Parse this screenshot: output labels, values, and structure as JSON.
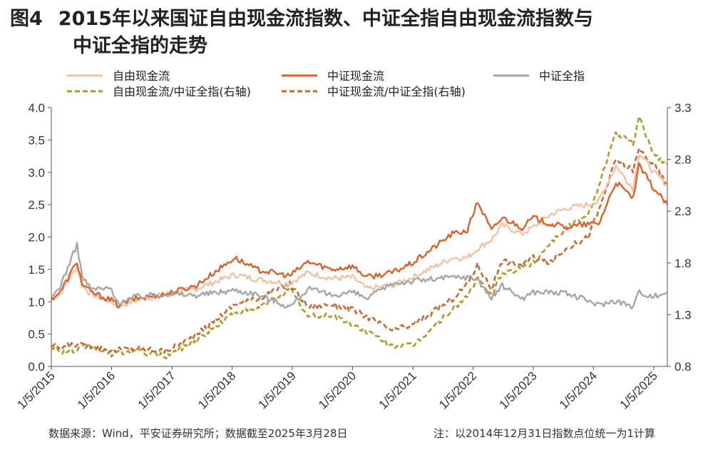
{
  "title": {
    "figure_no": "图4",
    "line1": "2015年以来国证自由现金流指数、中证全指自由现金流指数与",
    "line2": "中证全指的走势"
  },
  "footer": {
    "source": "数据来源：Wind，平安证券研究所；数据截至2025年3月28日",
    "note": "注：以2014年12月31日指数点位统一为1计算"
  },
  "chart_data": {
    "type": "line",
    "x_ticks": [
      "1/5/2015",
      "1/5/2016",
      "1/5/2017",
      "1/5/2018",
      "1/5/2019",
      "1/5/2020",
      "1/5/2021",
      "1/5/2022",
      "1/5/2023",
      "1/5/2024",
      "1/5/2025"
    ],
    "x_range": [
      "2015-01-05",
      "2025-03-28"
    ],
    "y_left": {
      "range": [
        0,
        4.0
      ],
      "ticks": [
        "0.0",
        "0.5",
        "1.0",
        "1.5",
        "2.0",
        "2.5",
        "3.0",
        "3.5",
        "4.0"
      ]
    },
    "y_right": {
      "range": [
        0.8,
        3.3
      ],
      "ticks": [
        "0.8",
        "1.3",
        "1.8",
        "2.3",
        "2.8",
        "3.3"
      ]
    },
    "legend_position": "top",
    "series": [
      {
        "name": "自由现金流",
        "axis": "left",
        "style": "solid",
        "color": "#f2c2a6",
        "points": [
          [
            "2015-01-05",
            1.05
          ],
          [
            "2015-03-01",
            1.12
          ],
          [
            "2015-06-10",
            1.55
          ],
          [
            "2015-07-10",
            1.25
          ],
          [
            "2015-09-01",
            1.12
          ],
          [
            "2016-01-05",
            1.0
          ],
          [
            "2016-02-10",
            0.92
          ],
          [
            "2016-06-01",
            1.02
          ],
          [
            "2016-12-01",
            1.12
          ],
          [
            "2017-06-01",
            1.2
          ],
          [
            "2018-01-20",
            1.42
          ],
          [
            "2018-06-01",
            1.35
          ],
          [
            "2018-12-20",
            1.28
          ],
          [
            "2019-04-10",
            1.45
          ],
          [
            "2019-09-01",
            1.36
          ],
          [
            "2020-01-05",
            1.38
          ],
          [
            "2020-04-01",
            1.2
          ],
          [
            "2020-09-01",
            1.25
          ],
          [
            "2021-01-05",
            1.38
          ],
          [
            "2021-09-01",
            1.68
          ],
          [
            "2021-12-01",
            1.68
          ],
          [
            "2022-02-01",
            1.82
          ],
          [
            "2022-04-27",
            1.96
          ],
          [
            "2022-07-01",
            2.18
          ],
          [
            "2022-10-31",
            2.05
          ],
          [
            "2023-01-05",
            2.15
          ],
          [
            "2023-04-20",
            2.35
          ],
          [
            "2023-08-01",
            2.45
          ],
          [
            "2023-12-01",
            2.5
          ],
          [
            "2024-02-05",
            2.55
          ],
          [
            "2024-05-20",
            3.1
          ],
          [
            "2024-09-01",
            2.75
          ],
          [
            "2024-10-08",
            3.3
          ],
          [
            "2025-01-05",
            3.0
          ],
          [
            "2025-03-28",
            2.8
          ]
        ]
      },
      {
        "name": "中证现金流",
        "axis": "left",
        "style": "solid",
        "color": "#d9622d",
        "points": [
          [
            "2015-01-05",
            1.05
          ],
          [
            "2015-03-01",
            1.15
          ],
          [
            "2015-06-10",
            1.62
          ],
          [
            "2015-07-10",
            1.28
          ],
          [
            "2015-09-01",
            1.15
          ],
          [
            "2016-01-05",
            1.02
          ],
          [
            "2016-02-10",
            0.95
          ],
          [
            "2016-06-01",
            1.05
          ],
          [
            "2016-12-01",
            1.12
          ],
          [
            "2017-06-01",
            1.25
          ],
          [
            "2018-01-20",
            1.68
          ],
          [
            "2018-06-01",
            1.5
          ],
          [
            "2018-12-20",
            1.4
          ],
          [
            "2019-04-10",
            1.62
          ],
          [
            "2019-09-01",
            1.5
          ],
          [
            "2020-01-05",
            1.55
          ],
          [
            "2020-04-01",
            1.38
          ],
          [
            "2020-09-01",
            1.45
          ],
          [
            "2021-01-05",
            1.6
          ],
          [
            "2021-09-01",
            2.05
          ],
          [
            "2021-12-01",
            2.1
          ],
          [
            "2022-02-01",
            2.55
          ],
          [
            "2022-04-27",
            2.1
          ],
          [
            "2022-07-01",
            2.3
          ],
          [
            "2022-10-31",
            2.15
          ],
          [
            "2023-01-05",
            2.3
          ],
          [
            "2023-04-20",
            2.2
          ],
          [
            "2023-08-01",
            2.15
          ],
          [
            "2023-12-01",
            2.2
          ],
          [
            "2024-02-05",
            2.2
          ],
          [
            "2024-05-20",
            2.85
          ],
          [
            "2024-09-01",
            2.6
          ],
          [
            "2024-10-08",
            3.1
          ],
          [
            "2025-01-05",
            2.75
          ],
          [
            "2025-03-28",
            2.5
          ]
        ]
      },
      {
        "name": "中证全指",
        "axis": "left",
        "style": "solid",
        "color": "#a6a6a6",
        "points": [
          [
            "2015-01-05",
            1.05
          ],
          [
            "2015-03-01",
            1.25
          ],
          [
            "2015-06-10",
            1.88
          ],
          [
            "2015-07-10",
            1.4
          ],
          [
            "2015-09-01",
            1.2
          ],
          [
            "2016-01-05",
            1.2
          ],
          [
            "2016-02-10",
            0.98
          ],
          [
            "2016-06-01",
            1.08
          ],
          [
            "2016-12-01",
            1.12
          ],
          [
            "2017-06-01",
            1.1
          ],
          [
            "2018-01-20",
            1.18
          ],
          [
            "2018-06-01",
            1.12
          ],
          [
            "2018-12-20",
            0.92
          ],
          [
            "2019-04-10",
            1.2
          ],
          [
            "2019-09-01",
            1.1
          ],
          [
            "2020-01-05",
            1.15
          ],
          [
            "2020-04-01",
            1.05
          ],
          [
            "2020-09-01",
            1.28
          ],
          [
            "2021-01-05",
            1.32
          ],
          [
            "2021-09-01",
            1.38
          ],
          [
            "2021-12-01",
            1.38
          ],
          [
            "2022-02-01",
            1.35
          ],
          [
            "2022-04-27",
            1.05
          ],
          [
            "2022-07-01",
            1.25
          ],
          [
            "2022-10-31",
            1.05
          ],
          [
            "2023-01-05",
            1.15
          ],
          [
            "2023-04-20",
            1.15
          ],
          [
            "2023-08-01",
            1.12
          ],
          [
            "2023-12-01",
            1.02
          ],
          [
            "2024-02-05",
            0.95
          ],
          [
            "2024-05-20",
            1.02
          ],
          [
            "2024-09-01",
            0.92
          ],
          [
            "2024-10-08",
            1.15
          ],
          [
            "2025-01-05",
            1.08
          ],
          [
            "2025-03-28",
            1.15
          ]
        ]
      },
      {
        "name": "自由现金流/中证全指(右轴)",
        "axis": "right",
        "style": "dashed",
        "color": "#b09a2e",
        "points": [
          [
            "2015-01-05",
            1.0
          ],
          [
            "2015-03-01",
            0.95
          ],
          [
            "2015-06-10",
            0.95
          ],
          [
            "2015-07-10",
            0.98
          ],
          [
            "2015-09-01",
            1.0
          ],
          [
            "2016-01-05",
            0.92
          ],
          [
            "2016-02-10",
            0.93
          ],
          [
            "2016-06-01",
            0.95
          ],
          [
            "2016-12-01",
            0.9
          ],
          [
            "2017-06-01",
            1.05
          ],
          [
            "2018-01-20",
            1.32
          ],
          [
            "2018-06-01",
            1.35
          ],
          [
            "2018-12-20",
            1.55
          ],
          [
            "2019-04-10",
            1.28
          ],
          [
            "2019-09-01",
            1.3
          ],
          [
            "2020-01-05",
            1.2
          ],
          [
            "2020-04-01",
            1.14
          ],
          [
            "2020-09-01",
            1.0
          ],
          [
            "2021-01-05",
            1.0
          ],
          [
            "2021-09-01",
            1.35
          ],
          [
            "2021-12-01",
            1.48
          ],
          [
            "2022-02-01",
            1.65
          ],
          [
            "2022-04-27",
            1.48
          ],
          [
            "2022-07-01",
            1.7
          ],
          [
            "2022-10-31",
            1.75
          ],
          [
            "2023-01-05",
            1.8
          ],
          [
            "2023-04-20",
            2.0
          ],
          [
            "2023-08-01",
            2.15
          ],
          [
            "2023-12-01",
            2.25
          ],
          [
            "2024-02-05",
            2.55
          ],
          [
            "2024-05-20",
            3.05
          ],
          [
            "2024-09-01",
            2.95
          ],
          [
            "2024-10-08",
            3.2
          ],
          [
            "2025-01-05",
            2.85
          ],
          [
            "2025-03-28",
            2.75
          ]
        ]
      },
      {
        "name": "中证现金流/中证全指(右轴)",
        "axis": "right",
        "style": "dashed",
        "color": "#c46a35",
        "points": [
          [
            "2015-01-05",
            1.0
          ],
          [
            "2015-03-01",
            0.98
          ],
          [
            "2015-06-10",
            1.02
          ],
          [
            "2015-07-10",
            1.0
          ],
          [
            "2015-09-01",
            1.0
          ],
          [
            "2016-01-05",
            0.95
          ],
          [
            "2016-02-10",
            0.96
          ],
          [
            "2016-06-01",
            0.98
          ],
          [
            "2016-12-01",
            0.95
          ],
          [
            "2017-06-01",
            1.1
          ],
          [
            "2018-01-20",
            1.4
          ],
          [
            "2018-06-01",
            1.45
          ],
          [
            "2018-12-20",
            1.6
          ],
          [
            "2019-04-10",
            1.38
          ],
          [
            "2019-09-01",
            1.4
          ],
          [
            "2020-01-05",
            1.35
          ],
          [
            "2020-04-01",
            1.28
          ],
          [
            "2020-09-01",
            1.15
          ],
          [
            "2021-01-05",
            1.2
          ],
          [
            "2021-09-01",
            1.45
          ],
          [
            "2021-12-01",
            1.6
          ],
          [
            "2022-02-01",
            1.78
          ],
          [
            "2022-04-27",
            1.55
          ],
          [
            "2022-07-01",
            1.82
          ],
          [
            "2022-10-31",
            1.78
          ],
          [
            "2023-01-05",
            1.85
          ],
          [
            "2023-04-20",
            1.8
          ],
          [
            "2023-08-01",
            1.95
          ],
          [
            "2023-12-01",
            2.05
          ],
          [
            "2024-02-05",
            2.3
          ],
          [
            "2024-05-20",
            2.8
          ],
          [
            "2024-09-01",
            2.7
          ],
          [
            "2024-10-08",
            2.9
          ],
          [
            "2025-01-05",
            2.75
          ],
          [
            "2025-03-28",
            2.55
          ]
        ]
      }
    ]
  }
}
